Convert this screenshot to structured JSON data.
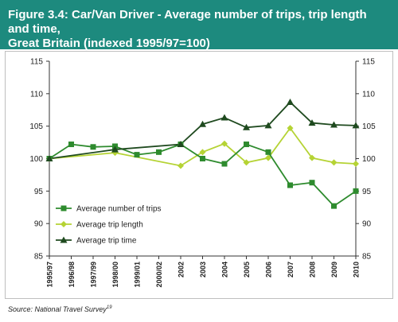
{
  "header": {
    "title_line1": "Figure 3.4: Car/Van Driver - Average number of trips, trip length and time,",
    "title_line2": "Great Britain (indexed 1995/97=100)"
  },
  "source": {
    "text": "Source: National Travel Survey",
    "footnote": "19"
  },
  "colors": {
    "header_bg": "#1d8a7e",
    "trips": "#2e8b2e",
    "length": "#b5d334",
    "time": "#1f4a1f"
  },
  "chart_data": {
    "type": "line",
    "categories": [
      "1995/97",
      "1996/98",
      "1997/99",
      "1998/00",
      "1999/01",
      "2000/02",
      "2002",
      "2003",
      "2004",
      "2005",
      "2006",
      "2007",
      "2008",
      "2009",
      "2010"
    ],
    "ylim": [
      85,
      115
    ],
    "yticks": [
      85,
      90,
      95,
      100,
      105,
      110,
      115
    ],
    "legend_position": "lower-left",
    "grid": false,
    "series": [
      {
        "name": "Average number of trips",
        "marker": "square",
        "color": "#2e8b2e",
        "values": [
          100,
          102.2,
          101.8,
          101.9,
          100.6,
          101.0,
          102.2,
          100.0,
          99.2,
          102.2,
          101.0,
          95.9,
          96.3,
          92.7,
          95.0
        ]
      },
      {
        "name": "Average trip length",
        "marker": "diamond",
        "color": "#b5d334",
        "values": [
          100,
          null,
          null,
          100.9,
          null,
          null,
          98.9,
          101.0,
          102.3,
          99.4,
          100.1,
          104.7,
          100.1,
          99.4,
          99.2
        ]
      },
      {
        "name": "Average trip time",
        "marker": "triangle",
        "color": "#1f4a1f",
        "values": [
          100,
          null,
          null,
          101.4,
          null,
          null,
          102.2,
          105.3,
          106.3,
          104.8,
          105.1,
          108.7,
          105.5,
          105.2,
          105.1
        ]
      }
    ]
  }
}
